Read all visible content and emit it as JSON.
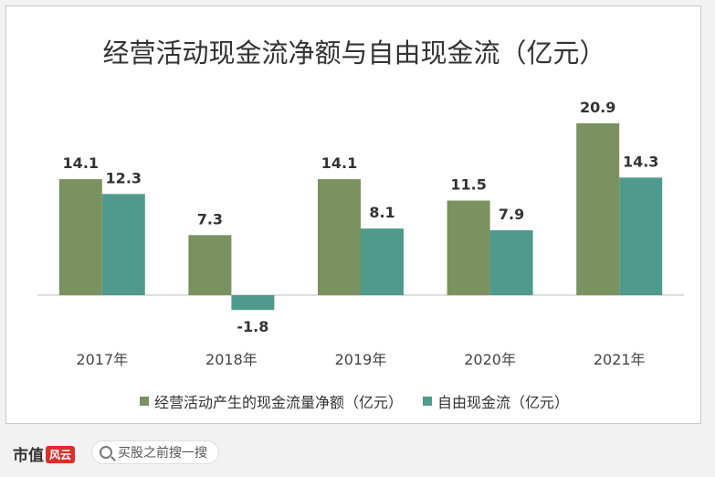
{
  "chart_data": {
    "type": "bar",
    "title": "经营活动现金流净额与自由现金流（亿元）",
    "categories": [
      "2017年",
      "2018年",
      "2019年",
      "2020年",
      "2021年"
    ],
    "series": [
      {
        "name": "经营活动产生的现金流量净额（亿元）",
        "color": "#7a9160",
        "values": [
          14.1,
          7.3,
          14.1,
          11.5,
          20.9
        ]
      },
      {
        "name": "自由现金流（亿元）",
        "color": "#4f9a8c",
        "values": [
          12.3,
          -1.8,
          8.1,
          7.9,
          14.3
        ]
      }
    ],
    "ylim": [
      -3,
      23
    ],
    "grid": false,
    "legend_position": "bottom"
  },
  "footer": {
    "brand": "市值",
    "brand_mark": "风云",
    "search_placeholder": "买股之前搜一搜"
  }
}
